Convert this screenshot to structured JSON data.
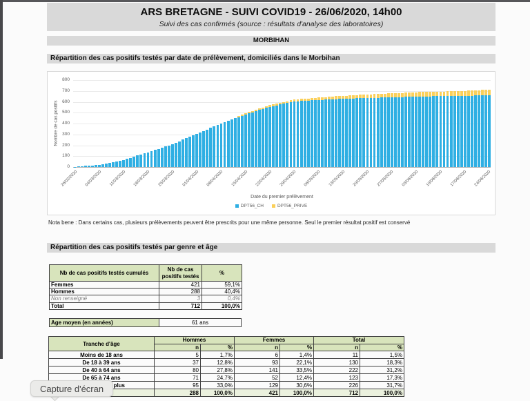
{
  "page": {
    "title": "ARS BRETAGNE - SUIVI COVID19 - 26/06/2020, 14h00",
    "subtitle": "Suivi des cas confirmés (source : résultats d'analyse des laboratoires)",
    "region_bar": "MORBIHAN",
    "section_chart": "Répartition des cas positifs testés par date de prélèvement, domiciliés dans le Morbihan",
    "nota_bene": "Nota bene : Dans certains cas, plusieurs prélèvements peuvent être prescrits pour une même personne. Seul le premier résultat positif est conservé",
    "section_tables": "Répartition des cas positifs testés par genre et âge"
  },
  "chart_data": {
    "type": "bar",
    "stacked": true,
    "xlabel": "Date du premier prélèvement",
    "ylabel": "Nombre de cas positifs",
    "ylim": [
      0,
      800
    ],
    "y_ticks": [
      0,
      100,
      200,
      300,
      400,
      500,
      600,
      700,
      800
    ],
    "x_tick_every": 7,
    "x_tick_labels": [
      "26/02/2020",
      "04/03/2020",
      "11/03/2020",
      "18/03/2020",
      "25/03/2020",
      "01/04/2020",
      "08/04/2020",
      "15/04/2020",
      "22/04/2020",
      "29/04/2020",
      "06/05/2020",
      "13/05/2020",
      "20/05/2020",
      "27/05/2020",
      "03/06/2020",
      "10/06/2020",
      "17/06/2020",
      "24/06/2020"
    ],
    "legend_position": "bottom",
    "series": [
      {
        "name": "DPT56_CH",
        "color": "#2fafe3",
        "values": [
          3,
          5,
          8,
          10,
          13,
          15,
          18,
          20,
          26,
          33,
          39,
          46,
          52,
          59,
          65,
          75,
          85,
          95,
          105,
          115,
          125,
          135,
          146,
          156,
          167,
          178,
          189,
          199,
          210,
          224,
          237,
          251,
          264,
          278,
          291,
          305,
          319,
          332,
          346,
          359,
          373,
          386,
          400,
          414,
          425,
          437,
          448,
          460,
          471,
          483,
          494,
          503,
          514,
          524,
          535,
          544,
          555,
          562,
          568,
          575,
          582,
          589,
          595,
          602,
          604,
          607,
          609,
          611,
          613,
          616,
          618,
          619,
          620,
          621,
          624,
          625,
          626,
          627,
          628,
          630,
          631,
          632,
          633,
          634,
          636,
          636,
          638,
          638,
          640,
          640,
          642,
          642,
          642,
          644,
          644,
          646,
          646,
          648,
          648,
          649,
          649,
          650,
          650,
          651,
          651,
          652,
          652,
          653,
          653,
          654,
          654,
          655,
          655,
          656,
          657,
          658,
          660,
          661,
          662,
          663
        ]
      },
      {
        "name": "DPT56_PRIVE",
        "color": "#fbd05a",
        "values": [
          0,
          0,
          0,
          0,
          0,
          0,
          0,
          0,
          0,
          0,
          0,
          0,
          0,
          0,
          0,
          0,
          0,
          0,
          0,
          0,
          0,
          0,
          0,
          0,
          0,
          0,
          0,
          0,
          0,
          0,
          0,
          0,
          0,
          0,
          0,
          0,
          0,
          0,
          0,
          0,
          0,
          0,
          0,
          0,
          2,
          4,
          6,
          8,
          10,
          12,
          12,
          13,
          13,
          14,
          14,
          15,
          15,
          15,
          16,
          16,
          17,
          17,
          18,
          18,
          19,
          19,
          20,
          20,
          21,
          21,
          22,
          23,
          24,
          25,
          25,
          26,
          27,
          28,
          29,
          29,
          30,
          31,
          31,
          32,
          32,
          33,
          33,
          34,
          34,
          35,
          35,
          36,
          37,
          37,
          38,
          38,
          39,
          39,
          40,
          40,
          41,
          41,
          42,
          42,
          43,
          43,
          43,
          44,
          44,
          44,
          45,
          45,
          45,
          46,
          46,
          47,
          47,
          48,
          48,
          49
        ]
      }
    ]
  },
  "genre_table": {
    "headers": [
      "Nb de cas positifs testés cumulés",
      "Nb de cas positifs testés",
      "%"
    ],
    "rows": [
      {
        "label": "Femmes",
        "n": "421",
        "pct": "59,1%"
      },
      {
        "label": "Hommes",
        "n": "288",
        "pct": "40,4%"
      },
      {
        "label": "Non renseigné",
        "n": "3",
        "pct": "0,4%"
      },
      {
        "label": "Total",
        "n": "712",
        "pct": "100,0%"
      }
    ]
  },
  "age_mean": {
    "label": "Age moyen (en années)",
    "value": "61 ans"
  },
  "age_table": {
    "col_label": "Tranche d'âge",
    "groups": [
      "Hommes",
      "Femmes",
      "Total"
    ],
    "subheaders": [
      "n",
      "%"
    ],
    "rows": [
      {
        "label": "Moins de 18 ans",
        "values": [
          "5",
          "1,7%",
          "6",
          "1,4%",
          "11",
          "1,5%"
        ]
      },
      {
        "label": "De 18 à 39 ans",
        "values": [
          "37",
          "12,8%",
          "93",
          "22,1%",
          "130",
          "18,3%"
        ]
      },
      {
        "label": "De 40 à 64 ans",
        "values": [
          "80",
          "27,8%",
          "141",
          "33,5%",
          "222",
          "31,2%"
        ]
      },
      {
        "label": "De 65 à 74 ans",
        "values": [
          "71",
          "24,7%",
          "52",
          "12,4%",
          "123",
          "17,3%"
        ]
      },
      {
        "label": "De 75 ans ou plus",
        "values": [
          "95",
          "33,0%",
          "129",
          "30,6%",
          "226",
          "31,7%"
        ]
      },
      {
        "label": "Total",
        "values": [
          "288",
          "100,0%",
          "421",
          "100,0%",
          "712",
          "100,0%"
        ]
      }
    ]
  },
  "tooltip": {
    "label": "Capture d'écran"
  },
  "colors": {
    "bar_ch": "#2fafe3",
    "bar_prive": "#fbd05a",
    "header_gray": "#d9d9d9",
    "table_header_green": "#d8e4bc",
    "table_total_green": "#ebf1de"
  }
}
